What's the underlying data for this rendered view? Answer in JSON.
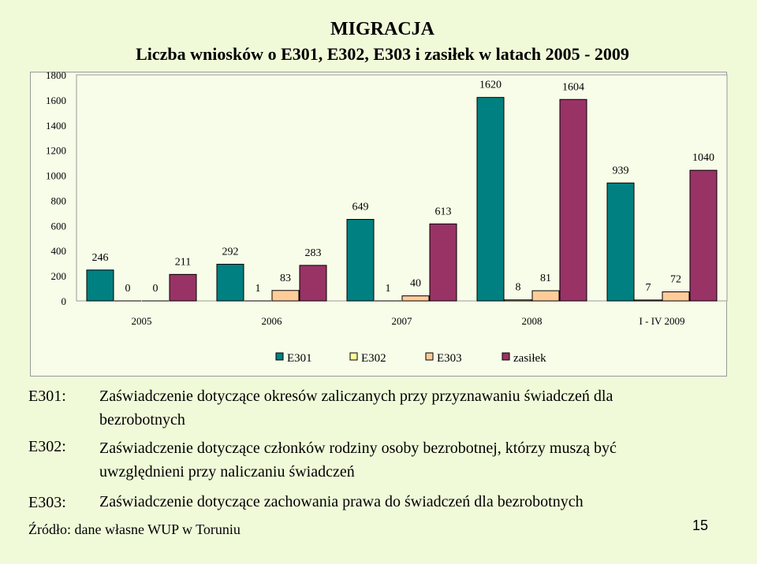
{
  "title": "MIGRACJA",
  "subtitle": "Liczba wniosków o E301, E302, E303 i zasiłek w latach 2005 - 2009",
  "chart_data": {
    "type": "bar",
    "categories": [
      "2005",
      "2006",
      "2007",
      "2008",
      "I - IV 2009"
    ],
    "series": [
      {
        "name": "E301",
        "color": "#008080",
        "values": [
          246,
          292,
          649,
          1620,
          939
        ]
      },
      {
        "name": "E302",
        "color": "#ffff99",
        "values": [
          0,
          1,
          1,
          8,
          7
        ]
      },
      {
        "name": "E303",
        "color": "#ffcc99",
        "values": [
          0,
          83,
          40,
          81,
          72
        ]
      },
      {
        "name": "zasiłek",
        "color": "#993366",
        "values": [
          211,
          283,
          613,
          1604,
          1040
        ]
      }
    ],
    "yticks": [
      "0",
      "200",
      "400",
      "600",
      "800",
      "1000",
      "1200",
      "1400",
      "1600",
      "1800"
    ],
    "ylim": [
      0,
      1800
    ],
    "grid": false,
    "legend": "bottom"
  },
  "definitions": [
    {
      "label": "E301:",
      "text": "Zaświadczenie dotyczące okresów zaliczanych przy przyznawaniu świadczeń dla bezrobotnych"
    },
    {
      "label": "E302:",
      "text": "Zaświadczenie dotyczące członków rodziny osoby bezrobotnej, którzy muszą być uwzględnieni przy naliczaniu świadczeń"
    },
    {
      "label": "E303:",
      "text": "Zaświadczenie dotyczące zachowania prawa do świadczeń dla bezrobotnych"
    }
  ],
  "source": "Źródło: dane własne  WUP w Toruniu",
  "page_number": "15"
}
